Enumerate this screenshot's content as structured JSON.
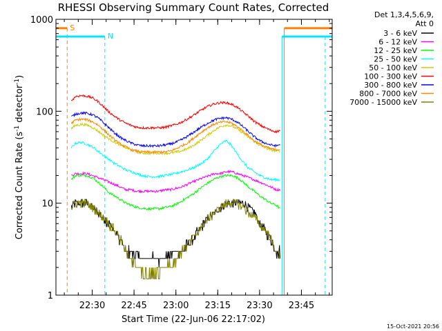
{
  "chart_data": {
    "type": "line",
    "title": "RHESSI Observing Summary Count Rates, Corrected",
    "xlabel": "Start Time (22-Jun-06 22:17:02)",
    "ylabel": "Corrected Count Rate (s⁻¹ detector⁻¹)",
    "ylabel_parts": {
      "a": "Corrected Count Rate (s",
      "sup1": "-1",
      "b": " detector",
      "sup2": "-1",
      "c": ")"
    },
    "y_scale": "log",
    "ylim": [
      1,
      1000
    ],
    "xlim_minutes": [
      -0.03,
      99.0
    ],
    "x_ticks": [
      {
        "label": "22:30",
        "min": 12.97
      },
      {
        "label": "22:45",
        "min": 27.97
      },
      {
        "label": "23:00",
        "min": 42.97
      },
      {
        "label": "23:15",
        "min": 57.97
      },
      {
        "label": "23:30",
        "min": 72.97
      },
      {
        "label": "23:45",
        "min": 87.97
      }
    ],
    "y_ticks": [
      {
        "label": "1",
        "value": 1
      },
      {
        "label": "10",
        "value": 10
      },
      {
        "label": "100",
        "value": 100
      },
      {
        "label": "1000",
        "value": 1000
      }
    ],
    "legend_title": [
      "Det 1,3,4,5,6,9,",
      "Att 0"
    ],
    "legend_placement": "right",
    "grid": false,
    "times_min": [
      5.5,
      7,
      9,
      11,
      13,
      15,
      17,
      19,
      21,
      23,
      25,
      27,
      29,
      31,
      33,
      35,
      37,
      39,
      41,
      43,
      45,
      47,
      49,
      51,
      53,
      55,
      57,
      59,
      61,
      63,
      65,
      67,
      69,
      71,
      73,
      75,
      77,
      79,
      80.5
    ],
    "series": [
      {
        "name": "3 - 6 keV",
        "color": "#000000",
        "values": [
          9,
          10,
          10,
          10,
          9,
          8,
          7,
          6,
          5,
          4,
          3,
          3,
          2.6,
          2.5,
          2.5,
          2.5,
          2.5,
          2.6,
          2.8,
          3,
          3,
          3.5,
          4,
          5,
          6,
          7,
          8,
          9,
          10,
          10,
          10,
          10,
          9,
          8,
          6,
          5,
          4,
          3,
          3
        ]
      },
      {
        "name": "6 - 12 keV",
        "color": "#ff00ff",
        "values": [
          20,
          21,
          21,
          21,
          20,
          19,
          18,
          17,
          16,
          15,
          14,
          14,
          13.5,
          13.5,
          13.5,
          13.5,
          13.5,
          14,
          14,
          14.5,
          15,
          16,
          17,
          18,
          19,
          20,
          21,
          21,
          22,
          22,
          21,
          20,
          19,
          18,
          17,
          16,
          15,
          14,
          14
        ]
      },
      {
        "name": "12 - 25 keV",
        "color": "#00ff00",
        "values": [
          18,
          20,
          20,
          20,
          19,
          17,
          15,
          13,
          12,
          11,
          10,
          9.5,
          9,
          8.8,
          8.7,
          8.7,
          8.7,
          9,
          9.2,
          9.7,
          10.5,
          11.5,
          12.5,
          14,
          15.5,
          17,
          18.5,
          19.5,
          20,
          20,
          19,
          17,
          15,
          13.5,
          12,
          11,
          10,
          9.5,
          8.5
        ]
      },
      {
        "name": "25 - 50 keV",
        "color": "#00ffff",
        "values": [
          40,
          45,
          46,
          44,
          41,
          37,
          33,
          30,
          27,
          25,
          23,
          22,
          21,
          20,
          19.5,
          19.5,
          19.5,
          20,
          20.5,
          21,
          22,
          23,
          24,
          26,
          28,
          32,
          38,
          44,
          48,
          42,
          34,
          28,
          24,
          22,
          20,
          19,
          18,
          18,
          18
        ]
      },
      {
        "name": "50 - 100 keV",
        "color": "#cccc00",
        "values": [
          65,
          70,
          72,
          71,
          67,
          61,
          55,
          50,
          46,
          43,
          40,
          38,
          36,
          35,
          35,
          35,
          35,
          35,
          35,
          36,
          37,
          39,
          42,
          46,
          51,
          57,
          63,
          68,
          71,
          69,
          64,
          58,
          52,
          47,
          43,
          40,
          38,
          37,
          37
        ]
      },
      {
        "name": "100 - 300 keV",
        "color": "#ff0000",
        "values": [
          130,
          145,
          148,
          146,
          140,
          128,
          112,
          98,
          88,
          80,
          74,
          70,
          67,
          66,
          66,
          66,
          66,
          67,
          69,
          72,
          76,
          82,
          89,
          98,
          107,
          115,
          121,
          124,
          124,
          119,
          110,
          98,
          88,
          78,
          71,
          66,
          62,
          60,
          62
        ]
      },
      {
        "name": "300 - 800 keV",
        "color": "#0000ff",
        "values": [
          87,
          93,
          96,
          95,
          92,
          85,
          75,
          66,
          58,
          52,
          48,
          45,
          43,
          42,
          42,
          42,
          42,
          43,
          44,
          46,
          49,
          53,
          58,
          64,
          70,
          76,
          81,
          84,
          85,
          82,
          76,
          68,
          60,
          53,
          48,
          45,
          43,
          42,
          44
        ]
      },
      {
        "name": "800 - 7000 keV",
        "color": "#ff8800",
        "values": [
          74,
          80,
          82,
          81,
          77,
          71,
          63,
          55,
          49,
          44,
          41,
          38,
          37,
          36,
          36,
          36,
          36,
          36,
          37,
          39,
          42,
          45,
          50,
          56,
          62,
          68,
          73,
          76,
          77,
          74,
          68,
          61,
          54,
          48,
          44,
          41,
          39,
          38,
          39
        ]
      },
      {
        "name": "7000 - 15000 keV",
        "color": "#808000",
        "values": [
          9,
          10,
          10,
          10,
          9,
          8,
          7,
          6,
          5,
          4,
          3,
          2.5,
          2,
          1.8,
          1.6,
          1.7,
          1.8,
          2,
          2.2,
          2.5,
          3,
          3.5,
          4,
          5,
          6,
          7,
          8,
          9,
          10,
          10,
          10,
          9,
          8,
          7,
          6,
          5,
          4,
          3,
          2.5
        ]
      }
    ],
    "annotations": [
      {
        "label": "S",
        "color": "#ff8000",
        "bar_min": [
          -0.03,
          4.0
        ],
        "bar_value": 800,
        "line_min": 4.0
      },
      {
        "label": "N",
        "color": "#00e5ff",
        "bar_min": [
          -0.03,
          17.5
        ],
        "bar_value": 650,
        "line_min": 17.5
      }
    ],
    "night_vertical_min": [
      81.0,
      96.5
    ],
    "night_bar_min": [
      81.0,
      99.0
    ],
    "saa_vertical_min": [
      81.8
    ],
    "saa_bar_min": [
      81.8,
      99.0
    ],
    "data_end_min": 80.8
  },
  "footer": {
    "timestamp": "15-Oct-2021 20:56"
  }
}
